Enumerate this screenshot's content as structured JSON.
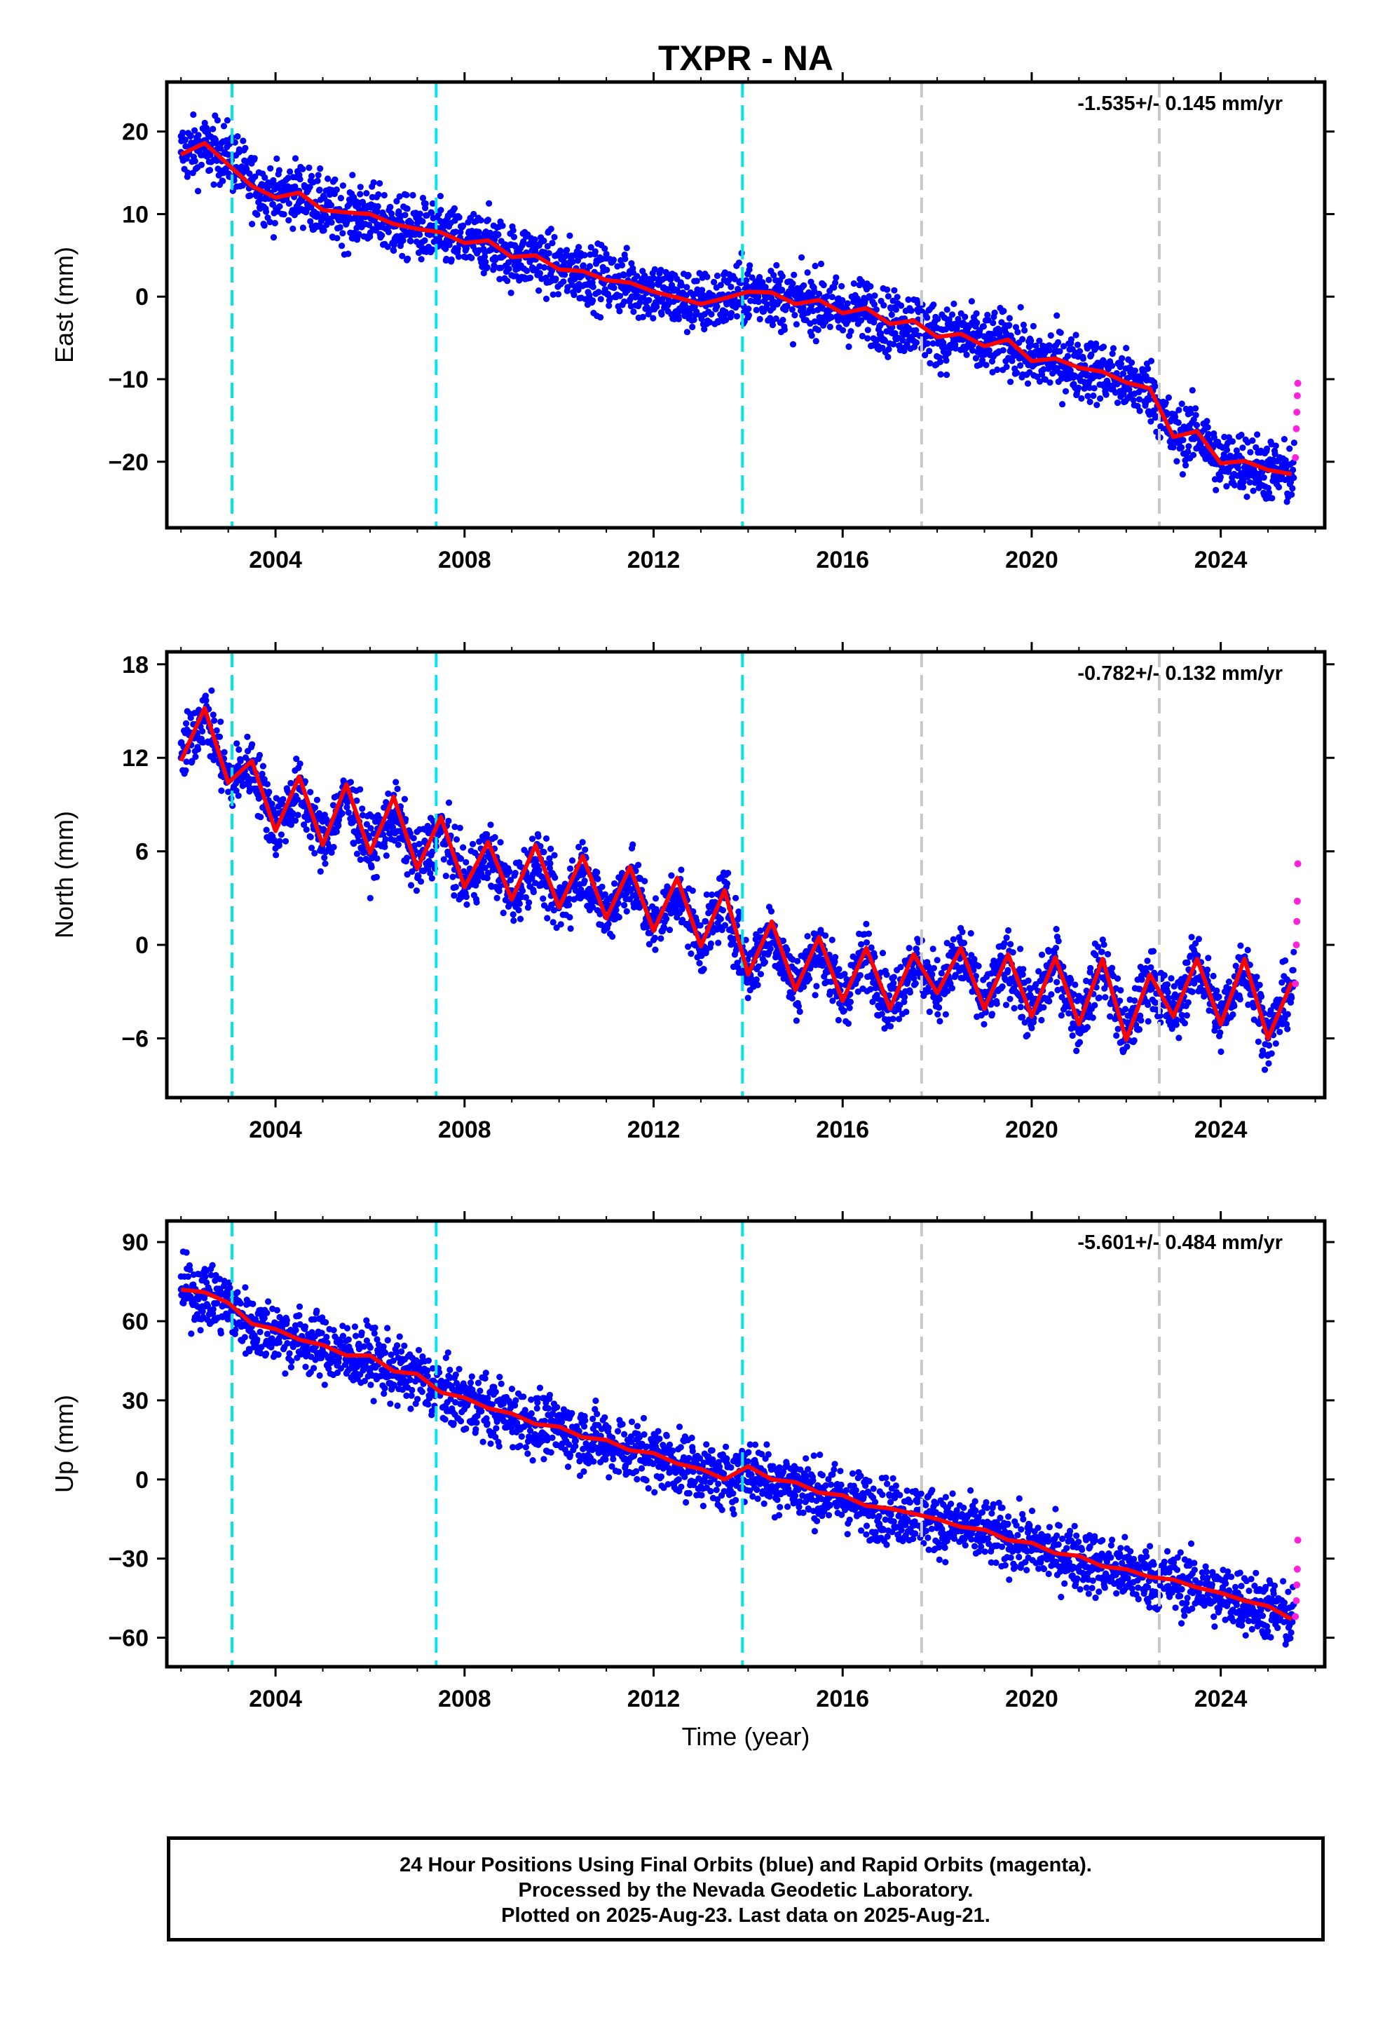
{
  "title": "TXPR - NA",
  "xlabel": "Time (year)",
  "footer": {
    "line1": "24 Hour Positions Using Final Orbits (blue) and Rapid Orbits (magenta).",
    "line2": "Processed by the Nevada Geodetic Laboratory.",
    "line3": "Plotted on 2025-Aug-23. Last data on 2025-Aug-21."
  },
  "colors": {
    "final_orbits": "#0000ff",
    "rapid_orbits": "#ff22dd",
    "model": "#ff0000",
    "equipment_change": "#00e5ee",
    "other_event": "#c8c8c8"
  },
  "chart_data": [
    {
      "type": "scatter",
      "panel": "east",
      "ylabel": "East (mm)",
      "rate_text": "-1.535+/- 0.145 mm/yr",
      "xlim": [
        2001.7,
        2026.2
      ],
      "ylim": [
        -28,
        26
      ],
      "xticks": [
        2004,
        2008,
        2012,
        2016,
        2020,
        2024
      ],
      "yticks": [
        -20,
        -10,
        0,
        10,
        20
      ],
      "grid": false,
      "vlines_cyan": [
        2003.08,
        2007.4,
        2013.88
      ],
      "vlines_gray": [
        2017.67,
        2022.7
      ],
      "series": [
        {
          "name": "Final Orbits",
          "color": "#0000ff",
          "x": [
            2002.0,
            2002.5,
            2003.0,
            2003.5,
            2004.0,
            2004.5,
            2005.0,
            2005.5,
            2006.0,
            2006.5,
            2007.0,
            2007.5,
            2008.0,
            2008.5,
            2009.0,
            2009.5,
            2010.0,
            2010.5,
            2011.0,
            2011.5,
            2012.0,
            2012.5,
            2013.0,
            2013.5,
            2014.0,
            2014.5,
            2015.0,
            2015.5,
            2016.0,
            2016.5,
            2017.0,
            2017.5,
            2018.0,
            2018.5,
            2019.0,
            2019.5,
            2020.0,
            2020.5,
            2021.0,
            2021.5,
            2022.0,
            2022.5,
            2023.0,
            2023.5,
            2024.0,
            2024.5,
            2025.0,
            2025.5
          ],
          "y": [
            17.5,
            17.9,
            17.2,
            13.6,
            12.0,
            12.8,
            10.6,
            9.8,
            10.0,
            8.5,
            8.1,
            7.5,
            6.5,
            6.6,
            4.8,
            4.9,
            3.3,
            3.0,
            2.0,
            1.6,
            0.6,
            -0.2,
            -0.9,
            -0.3,
            0.6,
            0.4,
            -0.9,
            -0.5,
            -2.0,
            -1.5,
            -3.3,
            -3.0,
            -4.9,
            -4.6,
            -6.0,
            -5.3,
            -7.8,
            -7.6,
            -8.6,
            -9.2,
            -10.4,
            -11.2,
            -17.0,
            -16.4,
            -20.2,
            -20.0,
            -21.0,
            -21.6
          ]
        },
        {
          "name": "Rapid Orbits",
          "color": "#ff22dd",
          "x": [
            2025.58,
            2025.6,
            2025.61,
            2025.62,
            2025.63
          ],
          "y": [
            -19.5,
            -16,
            -14,
            -12,
            -10.5
          ]
        },
        {
          "name": "Model",
          "color": "#ff0000",
          "x": [
            2002.0,
            2002.5,
            2003.0,
            2003.5,
            2004.0,
            2004.5,
            2005.0,
            2005.5,
            2006.0,
            2006.5,
            2007.0,
            2007.5,
            2008.0,
            2008.5,
            2009.0,
            2009.5,
            2010.0,
            2010.5,
            2011.0,
            2011.5,
            2012.0,
            2012.5,
            2013.0,
            2013.5,
            2014.0,
            2014.5,
            2015.0,
            2015.5,
            2016.0,
            2016.5,
            2017.0,
            2017.5,
            2018.0,
            2018.5,
            2019.0,
            2019.5,
            2020.0,
            2020.5,
            2021.0,
            2021.5,
            2022.0,
            2022.5,
            2023.0,
            2023.5,
            2024.0,
            2024.5,
            2025.0,
            2025.5
          ],
          "y": [
            17.2,
            18.6,
            16.0,
            13.4,
            12.0,
            12.6,
            10.5,
            10.2,
            10.0,
            8.8,
            8.2,
            7.8,
            6.5,
            6.8,
            4.8,
            5.0,
            3.3,
            3.1,
            2.0,
            1.7,
            0.6,
            -0.1,
            -0.9,
            -0.2,
            0.6,
            0.5,
            -0.9,
            -0.4,
            -2.0,
            -1.4,
            -3.3,
            -2.9,
            -4.9,
            -4.5,
            -6.0,
            -5.2,
            -7.8,
            -7.5,
            -8.6,
            -9.1,
            -10.4,
            -11.1,
            -17.0,
            -16.3,
            -20.2,
            -19.9,
            -21.0,
            -21.5
          ]
        }
      ]
    },
    {
      "type": "scatter",
      "panel": "north",
      "ylabel": "North (mm)",
      "rate_text": "-0.782+/- 0.132 mm/yr",
      "xlim": [
        2001.7,
        2026.2
      ],
      "ylim": [
        -9.8,
        18.8
      ],
      "xticks": [
        2004,
        2008,
        2012,
        2016,
        2020,
        2024
      ],
      "yticks": [
        -6,
        0,
        6,
        12,
        18
      ],
      "grid": false,
      "vlines_cyan": [
        2003.08,
        2007.4,
        2013.88
      ],
      "vlines_gray": [
        2017.67,
        2022.7
      ],
      "series": [
        {
          "name": "Final Orbits",
          "color": "#0000ff",
          "x": [
            2002.0,
            2002.5,
            2003.0,
            2003.5,
            2004.0,
            2004.5,
            2005.0,
            2005.5,
            2006.0,
            2006.5,
            2007.0,
            2007.5,
            2008.0,
            2008.5,
            2009.0,
            2009.5,
            2010.0,
            2010.5,
            2011.0,
            2011.5,
            2012.0,
            2012.5,
            2013.0,
            2013.5,
            2014.0,
            2014.5,
            2015.0,
            2015.5,
            2016.0,
            2016.5,
            2017.0,
            2017.5,
            2018.0,
            2018.5,
            2019.0,
            2019.5,
            2020.0,
            2020.5,
            2021.0,
            2021.5,
            2022.0,
            2022.5,
            2023.0,
            2023.5,
            2024.0,
            2024.5,
            2025.0,
            2025.5
          ],
          "y": [
            12.0,
            15.0,
            10.5,
            11.5,
            7.5,
            10.0,
            6.5,
            9.5,
            6.0,
            8.5,
            5.0,
            7.5,
            3.8,
            6.0,
            3.0,
            5.5,
            2.5,
            5.0,
            1.8,
            4.5,
            1.0,
            3.5,
            0.0,
            3.0,
            -1.8,
            1.0,
            -2.8,
            0.0,
            -3.5,
            -0.5,
            -4.0,
            -1.0,
            -3.0,
            -0.5,
            -4.0,
            -1.0,
            -4.5,
            -1.0,
            -5.0,
            -1.0,
            -6.0,
            -2.0,
            -4.5,
            -1.0,
            -5.0,
            -1.0,
            -6.0,
            -2.5
          ]
        },
        {
          "name": "Rapid Orbits",
          "color": "#ff22dd",
          "x": [
            2025.58,
            2025.6,
            2025.61,
            2025.62,
            2025.63
          ],
          "y": [
            -2.5,
            0.0,
            1.5,
            2.8,
            5.2
          ]
        },
        {
          "name": "Model",
          "color": "#ff0000",
          "x": [
            2002.0,
            2002.5,
            2003.0,
            2003.5,
            2004.0,
            2004.5,
            2005.0,
            2005.5,
            2006.0,
            2006.5,
            2007.0,
            2007.5,
            2008.0,
            2008.5,
            2009.0,
            2009.5,
            2010.0,
            2010.5,
            2011.0,
            2011.5,
            2012.0,
            2012.5,
            2013.0,
            2013.5,
            2014.0,
            2014.5,
            2015.0,
            2015.5,
            2016.0,
            2016.5,
            2017.0,
            2017.5,
            2018.0,
            2018.5,
            2019.0,
            2019.5,
            2020.0,
            2020.5,
            2021.0,
            2021.5,
            2022.0,
            2022.5,
            2023.0,
            2023.5,
            2024.0,
            2024.5,
            2025.0,
            2025.5
          ],
          "y": [
            11.8,
            15.2,
            10.4,
            11.8,
            7.3,
            10.8,
            6.4,
            10.3,
            5.9,
            9.5,
            4.9,
            8.2,
            3.7,
            6.6,
            2.9,
            6.4,
            2.4,
            5.7,
            1.7,
            5.0,
            0.9,
            4.3,
            -0.1,
            3.5,
            -1.9,
            1.5,
            -2.9,
            0.5,
            -3.6,
            -0.2,
            -4.1,
            -0.6,
            -3.1,
            -0.2,
            -4.1,
            -0.6,
            -4.6,
            -0.8,
            -5.1,
            -0.9,
            -6.1,
            -1.9,
            -4.6,
            -0.9,
            -5.1,
            -0.9,
            -6.0,
            -2.4
          ]
        }
      ]
    },
    {
      "type": "scatter",
      "panel": "up",
      "ylabel": "Up (mm)",
      "rate_text": "-5.601+/- 0.484 mm/yr",
      "xlim": [
        2001.7,
        2026.2
      ],
      "ylim": [
        -71,
        98
      ],
      "xticks": [
        2004,
        2008,
        2012,
        2016,
        2020,
        2024
      ],
      "yticks": [
        -60,
        -30,
        0,
        30,
        60,
        90
      ],
      "grid": false,
      "vlines_cyan": [
        2003.08,
        2007.4,
        2013.88
      ],
      "vlines_gray": [
        2017.67,
        2022.7
      ],
      "series": [
        {
          "name": "Final Orbits",
          "color": "#0000ff",
          "x": [
            2002.0,
            2002.5,
            2003.0,
            2003.5,
            2004.0,
            2004.5,
            2005.0,
            2005.5,
            2006.0,
            2006.5,
            2007.0,
            2007.5,
            2008.0,
            2008.5,
            2009.0,
            2009.5,
            2010.0,
            2010.5,
            2011.0,
            2011.5,
            2012.0,
            2012.5,
            2013.0,
            2013.5,
            2014.0,
            2014.5,
            2015.0,
            2015.5,
            2016.0,
            2016.5,
            2017.0,
            2017.5,
            2018.0,
            2018.5,
            2019.0,
            2019.5,
            2020.0,
            2020.5,
            2021.0,
            2021.5,
            2022.0,
            2022.5,
            2023.0,
            2023.5,
            2024.0,
            2024.5,
            2025.0,
            2025.5
          ],
          "y": [
            72,
            70,
            66,
            58,
            56,
            53,
            50,
            47,
            46,
            41,
            39,
            33,
            30,
            27,
            24,
            21,
            19,
            16,
            14,
            11,
            9,
            6,
            3,
            0,
            4,
            0,
            -2,
            -5,
            -7,
            -10,
            -12,
            -13,
            -16,
            -18,
            -20,
            -23,
            -25,
            -28,
            -30,
            -33,
            -35,
            -37,
            -39,
            -41,
            -44,
            -46,
            -49,
            -53
          ]
        },
        {
          "name": "Rapid Orbits",
          "color": "#ff22dd",
          "x": [
            2025.58,
            2025.6,
            2025.61,
            2025.62,
            2025.63
          ],
          "y": [
            -52,
            -46,
            -40,
            -34,
            -23
          ]
        },
        {
          "name": "Model",
          "color": "#ff0000",
          "x": [
            2002.0,
            2002.5,
            2003.0,
            2003.5,
            2004.0,
            2004.5,
            2005.0,
            2005.5,
            2006.0,
            2006.5,
            2007.0,
            2007.5,
            2008.0,
            2008.5,
            2009.0,
            2009.5,
            2010.0,
            2010.5,
            2011.0,
            2011.5,
            2012.0,
            2012.5,
            2013.0,
            2013.5,
            2014.0,
            2014.5,
            2015.0,
            2015.5,
            2016.0,
            2016.5,
            2017.0,
            2017.5,
            2018.0,
            2018.5,
            2019.0,
            2019.5,
            2020.0,
            2020.5,
            2021.0,
            2021.5,
            2022.0,
            2022.5,
            2023.0,
            2023.5,
            2024.0,
            2024.5,
            2025.0,
            2025.5
          ],
          "y": [
            72,
            71,
            67,
            59,
            57,
            53,
            51,
            47,
            47,
            41,
            40,
            33,
            31,
            27,
            25,
            21,
            20,
            16,
            15,
            11,
            10,
            6,
            4,
            0,
            5,
            0,
            -1,
            -5,
            -6,
            -10,
            -11,
            -13,
            -15,
            -18,
            -19,
            -23,
            -24,
            -28,
            -29,
            -33,
            -34,
            -37,
            -38,
            -41,
            -43,
            -46,
            -48,
            -53
          ]
        }
      ]
    }
  ]
}
